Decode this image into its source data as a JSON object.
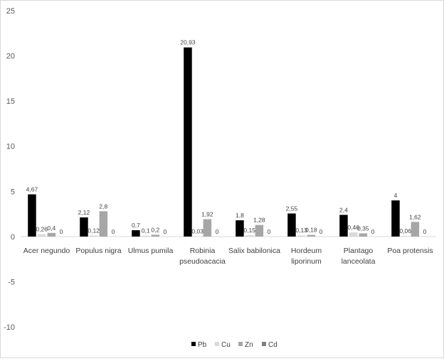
{
  "chart_data": {
    "type": "bar",
    "categories": [
      [
        "Acer negundo"
      ],
      [
        "Populus nigra"
      ],
      [
        "Ulmus pumila"
      ],
      [
        "Robinia",
        "pseudoacacia"
      ],
      [
        "Salix babilonica"
      ],
      [
        "Hordeum",
        "liporinum"
      ],
      [
        "Plantago",
        "lanceolata"
      ],
      [
        "Poa protensis"
      ]
    ],
    "series": [
      {
        "name": "Pb",
        "color": "#000000",
        "values": [
          4.67,
          2.12,
          0.7,
          20.93,
          1.8,
          2.55,
          2.4,
          4
        ],
        "labels": [
          "4,67",
          "2,12",
          "0,7",
          "20,93",
          "1,8",
          "2,55",
          "2,4",
          "4"
        ]
      },
      {
        "name": "Cu",
        "color": "#d9d9d9",
        "values": [
          0.26,
          0.12,
          0.1,
          0.03,
          0.15,
          0.13,
          0.46,
          0.06
        ],
        "labels": [
          "0,26",
          "0,12",
          "0,1",
          "0,03",
          "0,15",
          "0,13",
          "0,46",
          "0,06"
        ]
      },
      {
        "name": "Zn",
        "color": "#a6a6a6",
        "values": [
          0.4,
          2.8,
          0.2,
          1.92,
          1.28,
          0.18,
          0.35,
          1.62
        ],
        "labels": [
          "0,4",
          "2,8",
          "0,2",
          "1,92",
          "1,28",
          "0,18",
          "0,35",
          "1,62"
        ]
      },
      {
        "name": "Cd",
        "color": "#7f7f7f",
        "values": [
          0,
          0,
          0,
          0,
          0,
          0,
          0,
          0
        ],
        "labels": [
          "0",
          "0",
          "0",
          "0",
          "0",
          "0",
          "0",
          "0"
        ]
      }
    ],
    "yticks": [
      "25",
      "20",
      "15",
      "10",
      "5",
      "0",
      "-5",
      "-10"
    ],
    "ylim": [
      -10,
      25
    ],
    "grid": false,
    "legend": "bottom"
  }
}
